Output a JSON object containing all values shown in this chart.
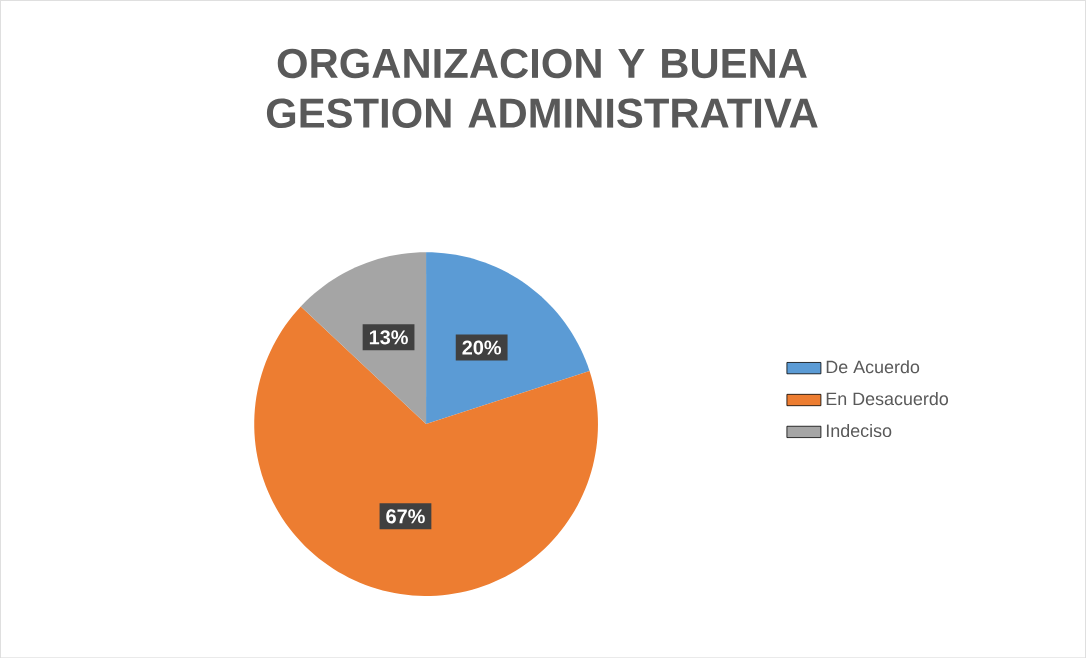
{
  "chart_data": {
    "type": "pie",
    "title": "ORGANIZACION Y BUENA GESTION ADMINISTRATIVA",
    "categories": [
      "De Acuerdo",
      "En Desacuerdo",
      "Indeciso"
    ],
    "values": [
      20,
      67,
      13
    ],
    "value_labels": [
      "20%",
      "67%",
      "13%"
    ],
    "colors": [
      "#5b9bd5",
      "#ed7d31",
      "#a5a5a5"
    ],
    "legend": "right"
  }
}
